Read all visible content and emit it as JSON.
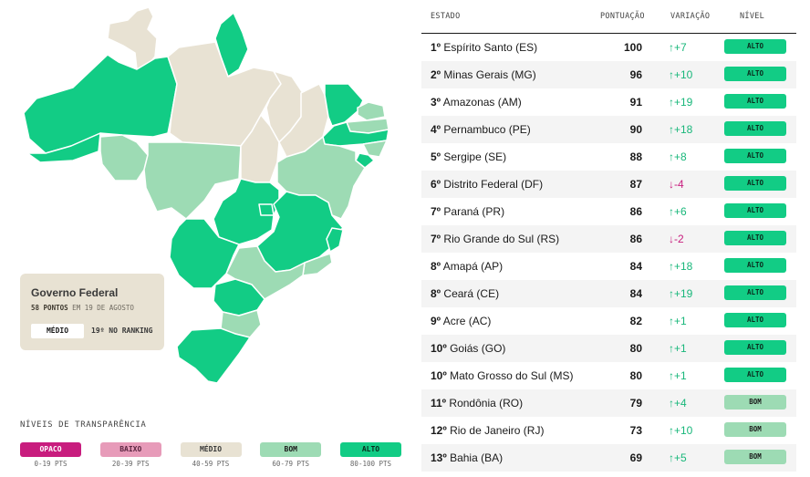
{
  "colors": {
    "opaco": "#c81d7e",
    "baixo": "#e79bb9",
    "medio": "#e8e2d3",
    "bom": "#9ddbb4",
    "alto": "#12cc85",
    "up": "#18b77a",
    "down": "#c81d7e"
  },
  "federal": {
    "title": "Governo Federal",
    "points": "58 PONTOS",
    "date": "EM 19 DE AGOSTO",
    "level": "MÉDIO",
    "rank": "19º NO RANKING"
  },
  "legend": {
    "title": "NÍVEIS DE TRANSPARÊNCIA",
    "items": [
      {
        "label": "OPACO",
        "range": "0-19 PTS"
      },
      {
        "label": "BAIXO",
        "range": "20-39 PTS"
      },
      {
        "label": "MÉDIO",
        "range": "40-59 PTS"
      },
      {
        "label": "BOM",
        "range": "60-79 PTS"
      },
      {
        "label": "ALTO",
        "range": "80-100 PTS"
      }
    ]
  },
  "table": {
    "headers": {
      "state": "ESTADO",
      "points": "PONTUAÇÃO",
      "variation": "VARIAÇÃO",
      "level": "NÍVEL"
    },
    "rows": [
      {
        "rank": "1º",
        "state": "Espírito Santo (ES)",
        "points": "100",
        "variation": "↑+7",
        "level": "ALTO"
      },
      {
        "rank": "2º",
        "state": "Minas Gerais (MG)",
        "points": "96",
        "variation": "↑+10",
        "level": "ALTO"
      },
      {
        "rank": "3º",
        "state": "Amazonas (AM)",
        "points": "91",
        "variation": "↑+19",
        "level": "ALTO"
      },
      {
        "rank": "4º",
        "state": "Pernambuco (PE)",
        "points": "90",
        "variation": "↑+18",
        "level": "ALTO"
      },
      {
        "rank": "5º",
        "state": "Sergipe (SE)",
        "points": "88",
        "variation": "↑+8",
        "level": "ALTO"
      },
      {
        "rank": "6º",
        "state": "Distrito Federal (DF)",
        "points": "87",
        "variation": "↓-4",
        "level": "ALTO"
      },
      {
        "rank": "7º",
        "state": "Paraná (PR)",
        "points": "86",
        "variation": "↑+6",
        "level": "ALTO"
      },
      {
        "rank": "7º",
        "state": "Rio Grande do Sul (RS)",
        "points": "86",
        "variation": "↓-2",
        "level": "ALTO"
      },
      {
        "rank": "8º",
        "state": "Amapá (AP)",
        "points": "84",
        "variation": "↑+18",
        "level": "ALTO"
      },
      {
        "rank": "8º",
        "state": "Ceará (CE)",
        "points": "84",
        "variation": "↑+19",
        "level": "ALTO"
      },
      {
        "rank": "9º",
        "state": "Acre (AC)",
        "points": "82",
        "variation": "↑+1",
        "level": "ALTO"
      },
      {
        "rank": "10º",
        "state": "Goiás (GO)",
        "points": "80",
        "variation": "↑+1",
        "level": "ALTO"
      },
      {
        "rank": "10º",
        "state": "Mato Grosso do Sul (MS)",
        "points": "80",
        "variation": "↑+1",
        "level": "ALTO"
      },
      {
        "rank": "11º",
        "state": "Rondônia (RO)",
        "points": "79",
        "variation": "↑+4",
        "level": "BOM"
      },
      {
        "rank": "12º",
        "state": "Rio de Janeiro (RJ)",
        "points": "73",
        "variation": "↑+10",
        "level": "BOM"
      },
      {
        "rank": "13º",
        "state": "Bahia (BA)",
        "points": "69",
        "variation": "↑+5",
        "level": "BOM"
      }
    ]
  },
  "map_states": [
    {
      "id": "RR",
      "level": "MÉDIO"
    },
    {
      "id": "AP",
      "level": "ALTO"
    },
    {
      "id": "AM",
      "level": "ALTO"
    },
    {
      "id": "AC",
      "level": "ALTO"
    },
    {
      "id": "RO",
      "level": "BOM"
    },
    {
      "id": "PA",
      "level": "MÉDIO"
    },
    {
      "id": "MT",
      "level": "BOM"
    },
    {
      "id": "MA",
      "level": "MÉDIO"
    },
    {
      "id": "TO",
      "level": "MÉDIO"
    },
    {
      "id": "PI",
      "level": "MÉDIO"
    },
    {
      "id": "CE",
      "level": "ALTO"
    },
    {
      "id": "RN",
      "level": "BOM"
    },
    {
      "id": "PB",
      "level": "BOM"
    },
    {
      "id": "PE",
      "level": "ALTO"
    },
    {
      "id": "AL",
      "level": "BOM"
    },
    {
      "id": "SE",
      "level": "ALTO"
    },
    {
      "id": "BA",
      "level": "BOM"
    },
    {
      "id": "GO",
      "level": "ALTO"
    },
    {
      "id": "DF",
      "level": "ALTO"
    },
    {
      "id": "MG",
      "level": "ALTO"
    },
    {
      "id": "ES",
      "level": "ALTO"
    },
    {
      "id": "RJ",
      "level": "BOM"
    },
    {
      "id": "SP",
      "level": "BOM"
    },
    {
      "id": "MS",
      "level": "ALTO"
    },
    {
      "id": "PR",
      "level": "ALTO"
    },
    {
      "id": "SC",
      "level": "BOM"
    },
    {
      "id": "RS",
      "level": "ALTO"
    }
  ]
}
